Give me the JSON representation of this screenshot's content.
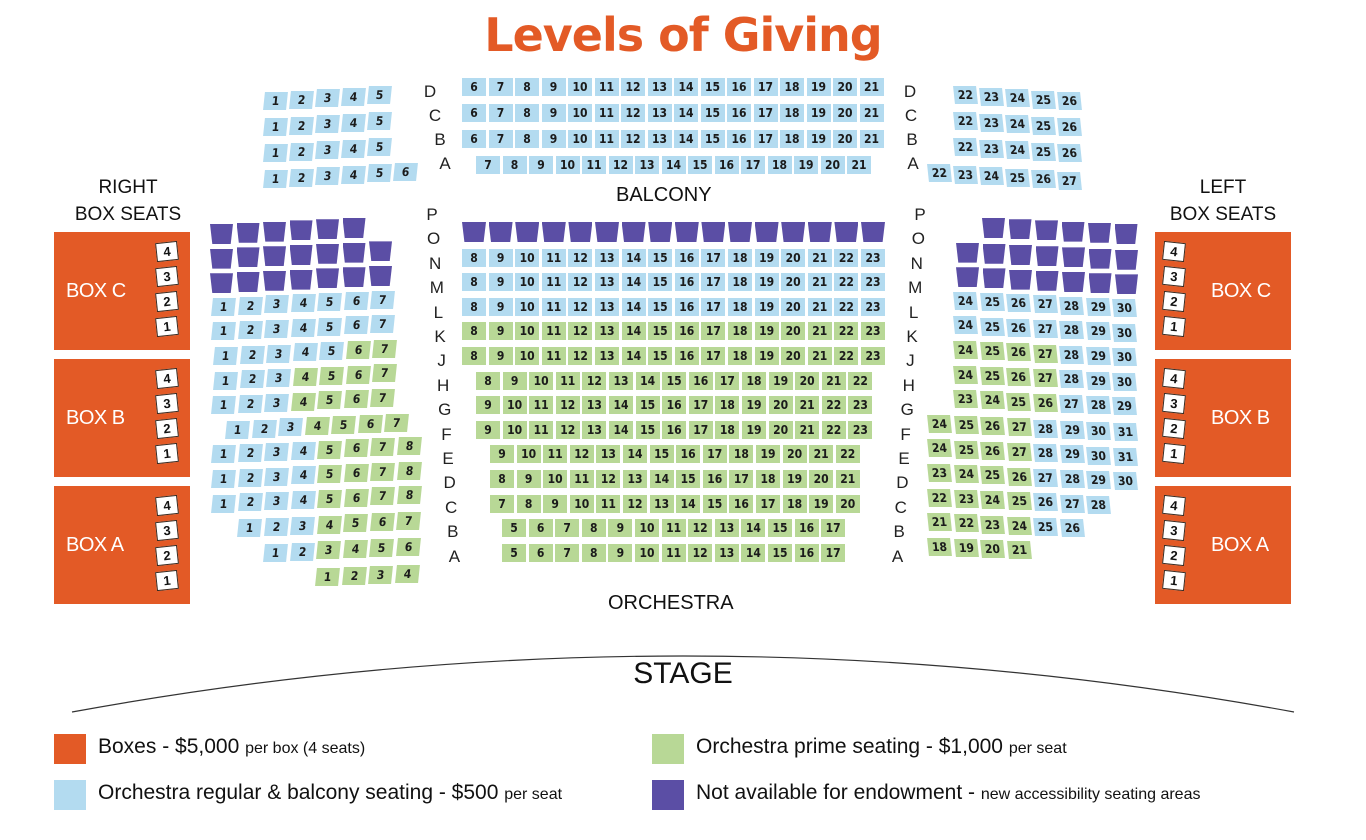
{
  "title": "Levels of Giving",
  "colors": {
    "boxes": "#e35a26",
    "regular": "#b3dbf0",
    "prime": "#b8d896",
    "unavailable": "#5b4ea5"
  },
  "labels": {
    "balcony": "BALCONY",
    "orchestra": "ORCHESTRA",
    "stage": "STAGE",
    "right_box_seats": [
      "RIGHT",
      "BOX SEATS"
    ],
    "left_box_seats": [
      "LEFT",
      "BOX SEATS"
    ]
  },
  "boxes": {
    "left_names": [
      "BOX C",
      "BOX B",
      "BOX A"
    ],
    "right_names": [
      "BOX C",
      "BOX B",
      "BOX A"
    ],
    "seat_numbers": [
      "4",
      "3",
      "2",
      "1"
    ]
  },
  "balcony": {
    "row_letters": [
      "D",
      "C",
      "B",
      "A"
    ],
    "left": [
      [
        "1",
        "2",
        "3",
        "4",
        "5"
      ],
      [
        "1",
        "2",
        "3",
        "4",
        "5"
      ],
      [
        "1",
        "2",
        "3",
        "4",
        "5"
      ],
      [
        "1",
        "2",
        "3",
        "4",
        "5",
        "6"
      ]
    ],
    "center": [
      [
        "6",
        "7",
        "8",
        "9",
        "10",
        "11",
        "12",
        "13",
        "14",
        "15",
        "16",
        "17",
        "18",
        "19",
        "20",
        "21"
      ],
      [
        "6",
        "7",
        "8",
        "9",
        "10",
        "11",
        "12",
        "13",
        "14",
        "15",
        "16",
        "17",
        "18",
        "19",
        "20",
        "21"
      ],
      [
        "6",
        "7",
        "8",
        "9",
        "10",
        "11",
        "12",
        "13",
        "14",
        "15",
        "16",
        "17",
        "18",
        "19",
        "20",
        "21"
      ],
      [
        "7",
        "8",
        "9",
        "10",
        "11",
        "12",
        "13",
        "14",
        "15",
        "16",
        "17",
        "18",
        "19",
        "20",
        "21"
      ]
    ],
    "right": [
      [
        "22",
        "23",
        "24",
        "25",
        "26"
      ],
      [
        "22",
        "23",
        "24",
        "25",
        "26"
      ],
      [
        "22",
        "23",
        "24",
        "25",
        "26"
      ],
      [
        "22",
        "23",
        "24",
        "25",
        "26",
        "27"
      ]
    ]
  },
  "orchestra": {
    "row_letters": [
      "P",
      "O",
      "N",
      "M",
      "L",
      "K",
      "J",
      "H",
      "G",
      "F",
      "E",
      "D",
      "C",
      "B",
      "A"
    ],
    "left": [
      {
        "n": [],
        "c": "uuuuuu"
      },
      {
        "n": [],
        "c": "uuuuuuu"
      },
      {
        "n": [],
        "c": "uuuuuuu"
      },
      {
        "n": [
          "1",
          "2",
          "3",
          "4",
          "5",
          "6",
          "7"
        ],
        "c": "rrrrrrr"
      },
      {
        "n": [
          "1",
          "2",
          "3",
          "4",
          "5",
          "6",
          "7"
        ],
        "c": "rrrrrrr"
      },
      {
        "n": [
          "1",
          "2",
          "3",
          "4",
          "5",
          "6",
          "7"
        ],
        "c": "rrrrrpp"
      },
      {
        "n": [
          "1",
          "2",
          "3",
          "4",
          "5",
          "6",
          "7"
        ],
        "c": "rrrpppp"
      },
      {
        "n": [
          "1",
          "2",
          "3",
          "4",
          "5",
          "6",
          "7"
        ],
        "c": "rrrpppp"
      },
      {
        "n": [
          "1",
          "2",
          "3",
          "4",
          "5",
          "6",
          "7"
        ],
        "c": "rrrpppp"
      },
      {
        "n": [
          "1",
          "2",
          "3",
          "4",
          "5",
          "6",
          "7",
          "8"
        ],
        "c": "rrrrpppp"
      },
      {
        "n": [
          "1",
          "2",
          "3",
          "4",
          "5",
          "6",
          "7",
          "8"
        ],
        "c": "rrrrpppp"
      },
      {
        "n": [
          "1",
          "2",
          "3",
          "4",
          "5",
          "6",
          "7",
          "8"
        ],
        "c": "rrrrpppp"
      },
      {
        "n": [
          "1",
          "2",
          "3",
          "4",
          "5",
          "6",
          "7"
        ],
        "c": "rrrpppp"
      },
      {
        "n": [
          "1",
          "2",
          "3",
          "4",
          "5",
          "6"
        ],
        "c": "rrpppp"
      },
      {
        "n": [
          "1",
          "2",
          "3",
          "4"
        ],
        "c": "pppp"
      }
    ],
    "center": [
      {
        "n": [],
        "c": "uuuuuuuuuuuuuuuu"
      },
      {
        "n": [
          "8",
          "9",
          "10",
          "11",
          "12",
          "13",
          "14",
          "15",
          "16",
          "17",
          "18",
          "19",
          "20",
          "21",
          "22",
          "23"
        ],
        "c": "rrrrrrrrrrrrrrrr"
      },
      {
        "n": [
          "8",
          "9",
          "10",
          "11",
          "12",
          "13",
          "14",
          "15",
          "16",
          "17",
          "18",
          "19",
          "20",
          "21",
          "22",
          "23"
        ],
        "c": "rrrrrrrrrrrrrrrr"
      },
      {
        "n": [
          "8",
          "9",
          "10",
          "11",
          "12",
          "13",
          "14",
          "15",
          "16",
          "17",
          "18",
          "19",
          "20",
          "21",
          "22",
          "23"
        ],
        "c": "rrrrrrrrrrrrrrrr"
      },
      {
        "n": [
          "8",
          "9",
          "10",
          "11",
          "12",
          "13",
          "14",
          "15",
          "16",
          "17",
          "18",
          "19",
          "20",
          "21",
          "22",
          "23"
        ],
        "c": "pppppppppppppppp"
      },
      {
        "n": [
          "8",
          "9",
          "10",
          "11",
          "12",
          "13",
          "14",
          "15",
          "16",
          "17",
          "18",
          "19",
          "20",
          "21",
          "22",
          "23"
        ],
        "c": "pppppppppppppppp"
      },
      {
        "n": [
          "8",
          "9",
          "10",
          "11",
          "12",
          "13",
          "14",
          "15",
          "16",
          "17",
          "18",
          "19",
          "20",
          "21",
          "22"
        ],
        "c": "ppppppppppppppp"
      },
      {
        "n": [
          "9",
          "10",
          "11",
          "12",
          "13",
          "14",
          "15",
          "16",
          "17",
          "18",
          "19",
          "20",
          "21",
          "22",
          "23"
        ],
        "c": "ppppppppppppppp"
      },
      {
        "n": [
          "9",
          "10",
          "11",
          "12",
          "13",
          "14",
          "15",
          "16",
          "17",
          "18",
          "19",
          "20",
          "21",
          "22",
          "23"
        ],
        "c": "ppppppppppppppp"
      },
      {
        "n": [
          "9",
          "10",
          "11",
          "12",
          "13",
          "14",
          "15",
          "16",
          "17",
          "18",
          "19",
          "20",
          "21",
          "22"
        ],
        "c": "pppppppppppppp"
      },
      {
        "n": [
          "8",
          "9",
          "10",
          "11",
          "12",
          "13",
          "14",
          "15",
          "16",
          "17",
          "18",
          "19",
          "20",
          "21"
        ],
        "c": "pppppppppppppp"
      },
      {
        "n": [
          "7",
          "8",
          "9",
          "10",
          "11",
          "12",
          "13",
          "14",
          "15",
          "16",
          "17",
          "18",
          "19",
          "20"
        ],
        "c": "pppppppppppppp"
      },
      {
        "n": [
          "5",
          "6",
          "7",
          "8",
          "9",
          "10",
          "11",
          "12",
          "13",
          "14",
          "15",
          "16",
          "17"
        ],
        "c": "ppppppppppppp"
      },
      {
        "n": [
          "5",
          "6",
          "7",
          "8",
          "9",
          "10",
          "11",
          "12",
          "13",
          "14",
          "15",
          "16",
          "17"
        ],
        "c": "ppppppppppppp"
      },
      {
        "n": [],
        "c": ""
      }
    ],
    "right": [
      {
        "n": [],
        "c": "uuuuuu"
      },
      {
        "n": [],
        "c": "uuuuuuu"
      },
      {
        "n": [],
        "c": "uuuuuuu"
      },
      {
        "n": [
          "24",
          "25",
          "26",
          "27",
          "28",
          "29",
          "30"
        ],
        "c": "rrrrrrr"
      },
      {
        "n": [
          "24",
          "25",
          "26",
          "27",
          "28",
          "29",
          "30"
        ],
        "c": "rrrrrrr"
      },
      {
        "n": [
          "24",
          "25",
          "26",
          "27",
          "28",
          "29",
          "30"
        ],
        "c": "pppprrr"
      },
      {
        "n": [
          "24",
          "25",
          "26",
          "27",
          "28",
          "29",
          "30"
        ],
        "c": "pppprrr"
      },
      {
        "n": [
          "23",
          "24",
          "25",
          "26",
          "27",
          "28",
          "29"
        ],
        "c": "pppprrr"
      },
      {
        "n": [
          "24",
          "25",
          "26",
          "27",
          "28",
          "29",
          "30",
          "31"
        ],
        "c": "pppprrrr"
      },
      {
        "n": [
          "24",
          "25",
          "26",
          "27",
          "28",
          "29",
          "30",
          "31"
        ],
        "c": "pppprrrr"
      },
      {
        "n": [
          "23",
          "24",
          "25",
          "26",
          "27",
          "28",
          "29",
          "30"
        ],
        "c": "pppprrrr"
      },
      {
        "n": [
          "22",
          "23",
          "24",
          "25",
          "26",
          "27",
          "28"
        ],
        "c": "pppprrr"
      },
      {
        "n": [
          "21",
          "22",
          "23",
          "24",
          "25",
          "26"
        ],
        "c": "pppprr"
      },
      {
        "n": [
          "18",
          "19",
          "20",
          "21"
        ],
        "c": "pppp"
      },
      {
        "n": [],
        "c": ""
      }
    ]
  },
  "legend": [
    {
      "color": "#e35a26",
      "main": "Boxes - $5,000 ",
      "small": "per box (4 seats)"
    },
    {
      "color": "#b8d896",
      "main": "Orchestra prime seating - $1,000 ",
      "small": "per seat"
    },
    {
      "color": "#b3dbf0",
      "main": "Orchestra regular & balcony seating - $500 ",
      "small": "per seat"
    },
    {
      "color": "#5b4ea5",
      "main": "Not available for endowment - ",
      "small": "new accessibility seating areas"
    }
  ]
}
